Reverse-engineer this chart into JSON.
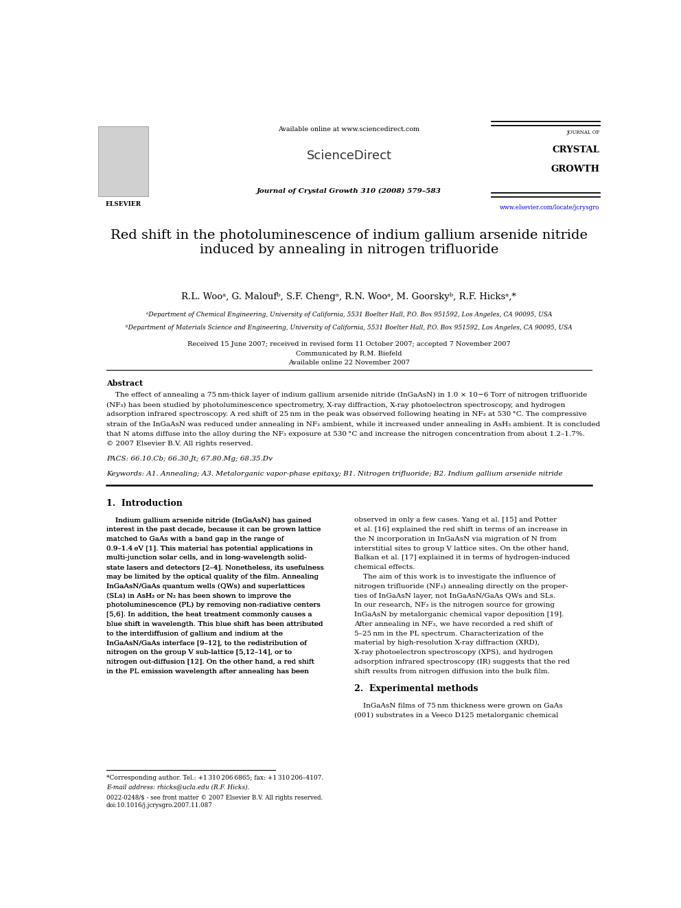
{
  "page_width": 9.92,
  "page_height": 13.23,
  "background_color": "#ffffff",
  "header": {
    "available_online_text": "Available online at www.sciencedirect.com",
    "journal_info": "Journal of Crystal Growth 310 (2008) 579–583",
    "url": "www.elsevier.com/locate/jcrysgro"
  },
  "title": "Red shift in the photoluminescence of indium gallium arsenide nitride\ninduced by annealing in nitrogen trifluoride",
  "authors": "R.L. Wooᵃ, G. Maloufᵇ, S.F. Chengᵃ, R.N. Wooᵃ, M. Goorskyᵇ, R.F. Hicksᵃ,*",
  "affil_a": "ᵃDepartment of Chemical Engineering, University of California, 5531 Boelter Hall, P.O. Box 951592, Los Angeles, CA 90095, USA",
  "affil_b": "ᵇDepartment of Materials Science and Engineering, University of California, 5531 Boelter Hall, P.O. Box 951592, Los Angeles, CA 90095, USA",
  "received": "Received 15 June 2007; received in revised form 11 October 2007; accepted 7 November 2007",
  "communicated": "Communicated by R.M. Biefeld",
  "available": "Available online 22 November 2007",
  "abstract_title": "Abstract",
  "abstract_lines": [
    "    The effect of annealing a 75 nm-thick layer of indium gallium arsenide nitride (InGaAsN) in 1.0 × 10−6 Torr of nitrogen trifluoride",
    "(NF₃) has been studied by photoluminescence spectrometry, X-ray diffraction, X-ray photoelectron spectroscopy, and hydrogen",
    "adsorption infrared spectroscopy. A red shift of 25 nm in the peak was observed following heating in NF₃ at 530 °C. The compressive",
    "strain of the InGaAsN was reduced under annealing in NF₃ ambient, while it increased under annealing in AsH₃ ambient. It is concluded",
    "that N atoms diffuse into the alloy during the NF₃ exposure at 530 °C and increase the nitrogen concentration from about 1.2–1.7%.",
    "© 2007 Elsevier B.V. All rights reserved."
  ],
  "pacs": "PACS: 66.10.Cb; 66.30.Jt; 67.80.Mg; 68.35.Dv",
  "keywords": "Keywords: A1. Annealing; A3. Metalorganic vapor-phase epitaxy; B1. Nitrogen trifluoride; B2. Indium gallium arsenide nitride",
  "section1_title": "1.  Introduction",
  "intro_col1_lines": [
    "    Indium gallium arsenide nitride (InGaAsN) has gained",
    "interest in the past decade, because it can be grown lattice",
    "matched to GaAs with a band gap in the range of",
    "0.9–1.4 eV [1]. This material has potential applications in",
    "multi-junction solar cells, and in long-wavelength solid-",
    "state lasers and detectors [2–4]. Nonetheless, its usefulness",
    "may be limited by the optical quality of the film. Annealing",
    "InGaAsN/GaAs quantum wells (QWs) and superlattices",
    "(SLs) in AsH₃ or N₂ has been shown to improve the",
    "photoluminescence (PL) by removing non-radiative centers",
    "[5,6]. In addition, the heat treatment commonly causes a",
    "blue shift in wavelength. This blue shift has been attributed",
    "to the interdiffusion of gallium and indium at the",
    "InGaAsN/GaAs interface [9–12], to the redistribution of",
    "nitrogen on the group V sub-lattice [5,12–14], or to",
    "nitrogen out-diffusion [12]. On the other hand, a red shift",
    "in the PL emission wavelength after annealing has been"
  ],
  "intro_col2_lines": [
    "observed in only a few cases. Yang et al. [15] and Potter",
    "et al. [16] explained the red shift in terms of an increase in",
    "the N incorporation in InGaAsN via migration of N from",
    "interstitial sites to group V lattice sites. On the other hand,",
    "Balkan et al. [17] explained it in terms of hydrogen-induced",
    "chemical effects.",
    "    The aim of this work is to investigate the influence of",
    "nitrogen trifluoride (NF₃) annealing directly on the proper-",
    "ties of InGaAsN layer, not InGaAsN/GaAs QWs and SLs.",
    "In our research, NF₃ is the nitrogen source for growing",
    "InGaAsN by metalorganic chemical vapor deposition [19].",
    "After annealing in NF₃, we have recorded a red shift of",
    "5–25 nm in the PL spectrum. Characterization of the",
    "material by high-resolution X-ray diffraction (XRD),",
    "X-ray photoelectron spectroscopy (XPS), and hydrogen",
    "adsorption infrared spectroscopy (IR) suggests that the red",
    "shift results from nitrogen diffusion into the bulk film."
  ],
  "section2_title": "2.  Experimental methods",
  "section2_col2_lines": [
    "    InGaAsN films of 75 nm thickness were grown on GaAs",
    "(001) substrates in a Veeco D125 metalorganic chemical"
  ],
  "footnote_star": "*Corresponding author. Tel.: +1 310 206 6865; fax: +1 310 206–4107.",
  "footnote_email": "E-mail address: rhicks@ucla.edu (R.F. Hicks).",
  "footer_issn": "0022-0248/$ - see front matter © 2007 Elsevier B.V. All rights reserved.",
  "footer_doi": "doi:10.1016/j.jcrysgro.2007.11.087"
}
